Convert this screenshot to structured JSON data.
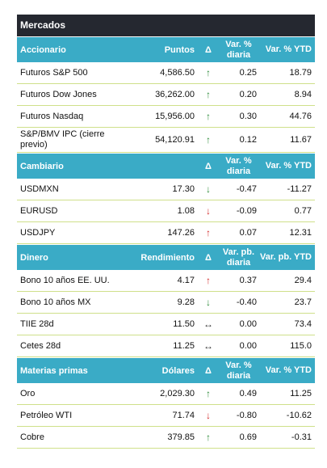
{
  "title": "Mercados",
  "sections": [
    {
      "header": {
        "name": "Accionario",
        "value": "Puntos",
        "delta": "Δ",
        "var1": "Var. % diaria",
        "var2": "Var. % YTD"
      },
      "rows": [
        {
          "name": "Futuros S&P 500",
          "value": "4,586.50",
          "arrow": "↑",
          "arrow_color": "green",
          "var1": "0.25",
          "var2": "18.79"
        },
        {
          "name": "Futuros Dow Jones",
          "value": "36,262.00",
          "arrow": "↑",
          "arrow_color": "green",
          "var1": "0.20",
          "var2": "8.94"
        },
        {
          "name": "Futuros Nasdaq",
          "value": "15,956.00",
          "arrow": "↑",
          "arrow_color": "green",
          "var1": "0.30",
          "var2": "44.76"
        },
        {
          "name": "S&P/BMV IPC (cierre previo)",
          "value": "54,120.91",
          "arrow": "↑",
          "arrow_color": "green",
          "var1": "0.12",
          "var2": "11.67"
        }
      ]
    },
    {
      "header": {
        "name": "Cambiario",
        "value": "",
        "delta": "Δ",
        "var1": "Var. % diaria",
        "var2": "Var. % YTD"
      },
      "rows": [
        {
          "name": "USDMXN",
          "value": "17.30",
          "arrow": "↓",
          "arrow_color": "green",
          "var1": "-0.47",
          "var2": "-11.27"
        },
        {
          "name": "EURUSD",
          "value": "1.08",
          "arrow": "↓",
          "arrow_color": "red",
          "var1": "-0.09",
          "var2": "0.77"
        },
        {
          "name": "USDJPY",
          "value": "147.26",
          "arrow": "↑",
          "arrow_color": "red",
          "var1": "0.07",
          "var2": "12.31"
        }
      ]
    },
    {
      "header": {
        "name": "Dinero",
        "value": "Rendimiento",
        "delta": "Δ",
        "var1": "Var. pb. diaria",
        "var2": "Var. pb. YTD"
      },
      "rows": [
        {
          "name": "Bono 10 años EE. UU.",
          "value": "4.17",
          "arrow": "↑",
          "arrow_color": "red",
          "var1": "0.37",
          "var2": "29.4"
        },
        {
          "name": "Bono 10 años MX",
          "value": "9.28",
          "arrow": "↓",
          "arrow_color": "green",
          "var1": "-0.40",
          "var2": "23.7"
        },
        {
          "name": "TIIE 28d",
          "value": "11.50",
          "arrow": "↔",
          "arrow_color": "neutral",
          "var1": "0.00",
          "var2": "73.4"
        },
        {
          "name": "Cetes 28d",
          "value": "11.25",
          "arrow": "↔",
          "arrow_color": "neutral",
          "var1": "0.00",
          "var2": "115.0"
        }
      ]
    },
    {
      "header": {
        "name": "Materias primas",
        "value": "Dólares",
        "delta": "Δ",
        "var1": "Var. % diaria",
        "var2": "Var. % YTD"
      },
      "rows": [
        {
          "name": "Oro",
          "value": "2,029.30",
          "arrow": "↑",
          "arrow_color": "green",
          "var1": "0.49",
          "var2": "11.25"
        },
        {
          "name": "Petróleo WTI",
          "value": "71.74",
          "arrow": "↓",
          "arrow_color": "red",
          "var1": "-0.80",
          "var2": "-10.62"
        },
        {
          "name": "Cobre",
          "value": "379.85",
          "arrow": "↑",
          "arrow_color": "green",
          "var1": "0.69",
          "var2": "-0.31"
        }
      ]
    }
  ],
  "colors": {
    "title_bg": "#252830",
    "header_bg": "#3aabc6",
    "row_border": "#cfe08a",
    "up_green": "#2e8b3a",
    "red": "#d42a2a"
  }
}
